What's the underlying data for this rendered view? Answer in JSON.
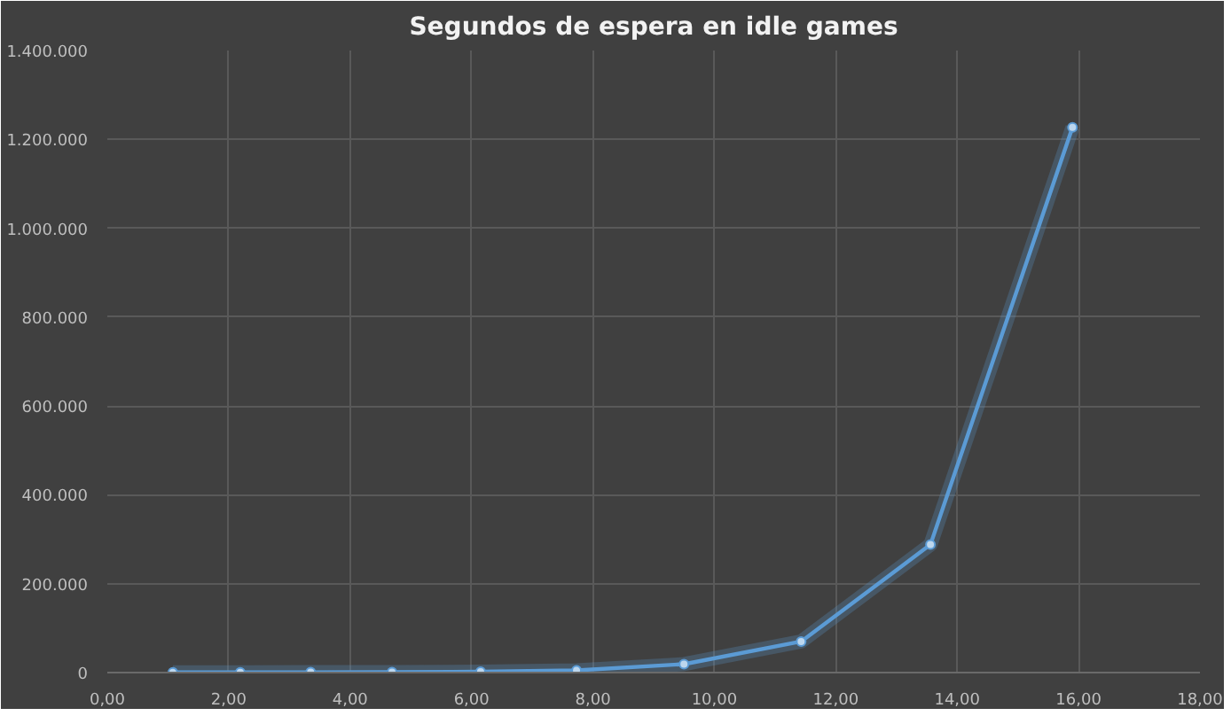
{
  "chart_data": {
    "type": "line",
    "title": "Segundos de espera en idle games",
    "x": [
      1.08,
      2.19,
      3.35,
      4.69,
      6.15,
      7.73,
      9.5,
      11.43,
      13.56,
      15.9
    ],
    "series": [
      {
        "color": "#5b9bd5",
        "values": [
          500,
          600,
          800,
          1000,
          2000,
          5000,
          19000,
          70000,
          288000,
          1227000
        ]
      }
    ],
    "xlim": [
      0,
      18
    ],
    "xticks": [
      {
        "value": 0,
        "label": "0,00"
      },
      {
        "value": 2,
        "label": "2,00"
      },
      {
        "value": 4,
        "label": "4,00"
      },
      {
        "value": 6,
        "label": "6,00"
      },
      {
        "value": 8,
        "label": "8,00"
      },
      {
        "value": 10,
        "label": "10,00"
      },
      {
        "value": 12,
        "label": "12,00"
      },
      {
        "value": 14,
        "label": "14,00"
      },
      {
        "value": 16,
        "label": "16,00"
      },
      {
        "value": 18,
        "label": "18,00"
      }
    ],
    "ylim": [
      0,
      1400000
    ],
    "yticks": [
      0,
      {
        "value": 200000,
        "label": "200.000"
      },
      {
        "value": 400000,
        "label": "400.000"
      },
      {
        "value": 600000,
        "label": "600.000"
      },
      {
        "value": 800000,
        "label": "800.000"
      },
      {
        "value": 1000000,
        "label": "1.000.000"
      },
      {
        "value": 1200000,
        "label": "1.200.000"
      },
      {
        "value": 1400000,
        "label": "1.400.000"
      }
    ],
    "grid": true,
    "marker": "circle",
    "line_style": "solid"
  }
}
